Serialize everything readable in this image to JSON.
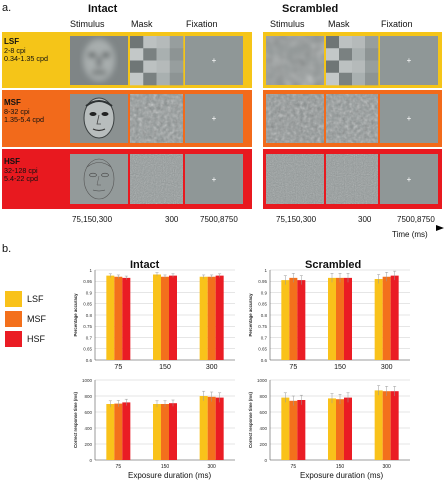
{
  "panel_a": {
    "label": "a.",
    "conditions": {
      "intact": "Intact",
      "scrambled": "Scrambled"
    },
    "columns": {
      "stimulus": "Stimulus",
      "mask": "Mask",
      "fixation": "Fixation"
    },
    "rows": [
      {
        "name": "LSF",
        "cpi": "2-8 cpi",
        "cpd": "0.34-1.35 cpd",
        "color": "#f5c518"
      },
      {
        "name": "MSF",
        "cpi": "8-32 cpi",
        "cpd": "1.35-5.4 cpd",
        "color": "#f26a1b"
      },
      {
        "name": "HSF",
        "cpi": "32-128 cpi",
        "cpd": "5.4-22 cpd",
        "color": "#e8191f"
      }
    ],
    "timeline": {
      "stimulus_durations": "75,150,300",
      "mask_duration": "300",
      "fixation_durations": "7500,8750",
      "axis_label": "Time (ms)"
    }
  },
  "panel_b": {
    "label": "b.",
    "legend": [
      "LSF",
      "MSF",
      "HSF"
    ],
    "colors": {
      "LSF": "#f9c21a",
      "MSF": "#f3701c",
      "HSF": "#ea1c24"
    },
    "xlabel": "Exposure duration (ms)",
    "ylabel_accuracy": "Percentage accuracy",
    "ylabel_rt": "Correct response time (ms)"
  },
  "chart_data": [
    {
      "type": "bar",
      "title": "Intact",
      "measure": "accuracy",
      "categories": [
        "75",
        "150",
        "300"
      ],
      "series": [
        {
          "name": "LSF",
          "values": [
            0.975,
            0.98,
            0.97
          ],
          "errors": [
            0.008,
            0.008,
            0.008
          ]
        },
        {
          "name": "MSF",
          "values": [
            0.97,
            0.97,
            0.97
          ],
          "errors": [
            0.008,
            0.008,
            0.008
          ]
        },
        {
          "name": "HSF",
          "values": [
            0.965,
            0.975,
            0.975
          ],
          "errors": [
            0.008,
            0.008,
            0.008
          ]
        }
      ],
      "ylim": [
        0.6,
        1
      ],
      "yticks": [
        0.6,
        0.65,
        0.7,
        0.75,
        0.8,
        0.85,
        0.9,
        0.95,
        1
      ]
    },
    {
      "type": "bar",
      "title": "Scrambled",
      "measure": "accuracy",
      "categories": [
        "75",
        "150",
        "300"
      ],
      "series": [
        {
          "name": "LSF",
          "values": [
            0.955,
            0.965,
            0.96
          ],
          "errors": [
            0.02,
            0.02,
            0.02
          ]
        },
        {
          "name": "MSF",
          "values": [
            0.965,
            0.965,
            0.97
          ],
          "errors": [
            0.02,
            0.02,
            0.02
          ]
        },
        {
          "name": "HSF",
          "values": [
            0.955,
            0.965,
            0.975
          ],
          "errors": [
            0.02,
            0.02,
            0.02
          ]
        }
      ],
      "ylim": [
        0.6,
        1
      ],
      "yticks": [
        0.6,
        0.65,
        0.7,
        0.75,
        0.8,
        0.85,
        0.9,
        0.95,
        1
      ]
    },
    {
      "type": "bar",
      "measure": "rt",
      "categories": [
        "75",
        "150",
        "300"
      ],
      "series": [
        {
          "name": "LSF",
          "values": [
            700,
            700,
            800
          ],
          "errors": [
            40,
            40,
            60
          ]
        },
        {
          "name": "MSF",
          "values": [
            705,
            700,
            790
          ],
          "errors": [
            40,
            40,
            60
          ]
        },
        {
          "name": "HSF",
          "values": [
            720,
            710,
            780
          ],
          "errors": [
            40,
            40,
            60
          ]
        }
      ],
      "ylim": [
        0,
        1000
      ],
      "yticks": [
        0,
        200,
        400,
        600,
        800,
        1000
      ]
    },
    {
      "type": "bar",
      "measure": "rt",
      "categories": [
        "75",
        "150",
        "300"
      ],
      "series": [
        {
          "name": "LSF",
          "values": [
            780,
            770,
            870
          ],
          "errors": [
            60,
            60,
            60
          ]
        },
        {
          "name": "MSF",
          "values": [
            740,
            760,
            860
          ],
          "errors": [
            60,
            60,
            60
          ]
        },
        {
          "name": "HSF",
          "values": [
            750,
            780,
            860
          ],
          "errors": [
            60,
            60,
            60
          ]
        }
      ],
      "ylim": [
        0,
        1000
      ],
      "yticks": [
        0,
        200,
        400,
        600,
        800,
        1000
      ]
    }
  ]
}
